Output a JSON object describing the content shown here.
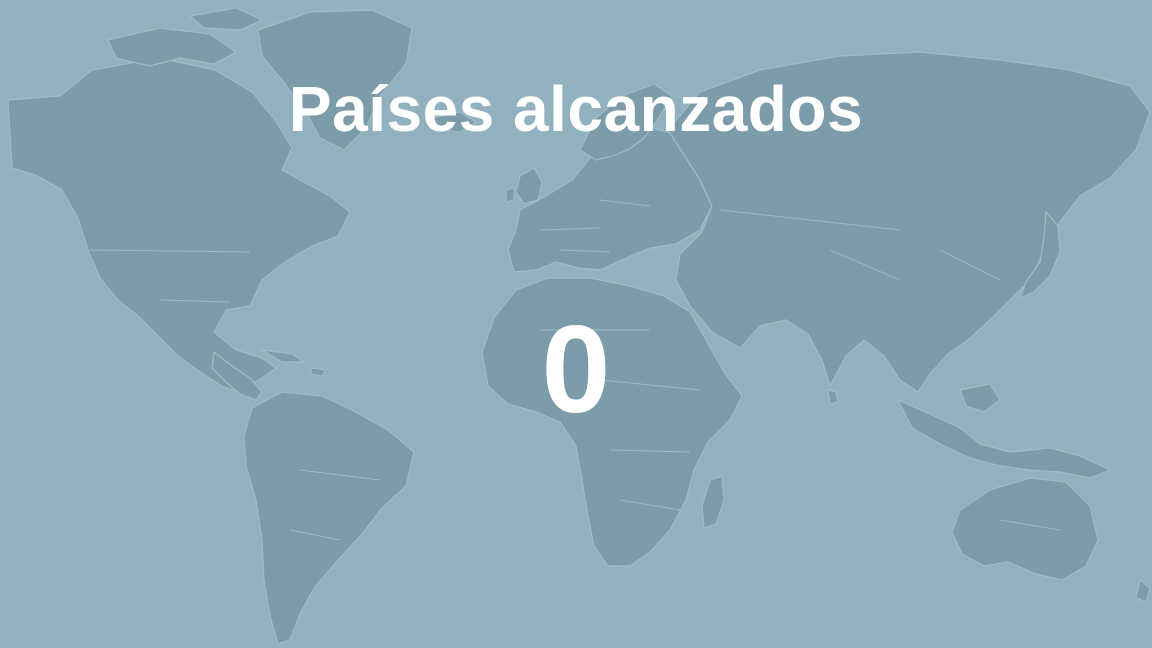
{
  "heading": "Países alcanzados",
  "counter": {
    "value": "0"
  },
  "colors": {
    "background": "#90b1bd",
    "land": "#7b9ca8",
    "text": "#ffffff"
  },
  "background_image": "world-map"
}
